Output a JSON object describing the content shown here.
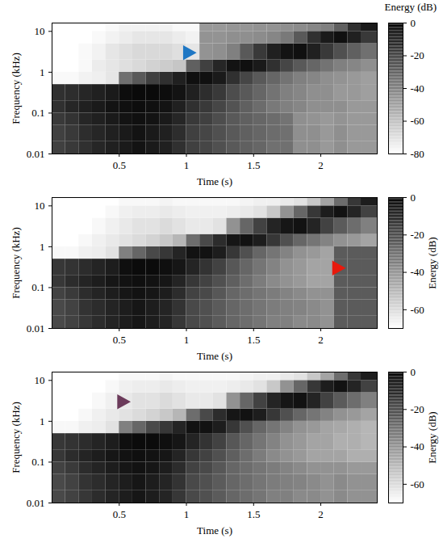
{
  "chart_data": [
    {
      "type": "heatmap",
      "x_label": "Time (s)",
      "y_label": "Frequency (kHz)",
      "log": "y",
      "xlim": [
        0,
        2.42
      ],
      "xticks": [
        0.5,
        1,
        1.5,
        2
      ],
      "ylim": [
        0.01,
        16
      ],
      "yticks": [
        0.01,
        0.1,
        1,
        10
      ],
      "x_edges": [
        0,
        0.1,
        0.2,
        0.3,
        0.4,
        0.5,
        0.6,
        0.7,
        0.8,
        0.9,
        1,
        1.1,
        1.2,
        1.3,
        1.4,
        1.5,
        1.6,
        1.7,
        1.8,
        1.9,
        2,
        2.1,
        2.2,
        2.3,
        2.42
      ],
      "y_edges": [
        0.01,
        0.02,
        0.05,
        0.1,
        0.2,
        0.5,
        1,
        2,
        5,
        10,
        16
      ],
      "cells": [
        [
          -20,
          -18,
          -15,
          -12,
          -10,
          -8,
          -6,
          -8,
          -10,
          -15,
          -20,
          -22,
          -25,
          -28,
          -30,
          -32,
          -35,
          -35,
          -45,
          -45,
          -48,
          -45,
          -48,
          -48
        ],
        [
          -20,
          -18,
          -14,
          -12,
          -10,
          -8,
          -6,
          -8,
          -10,
          -14,
          -20,
          -22,
          -25,
          -28,
          -30,
          -32,
          -34,
          -35,
          -45,
          -45,
          -48,
          -45,
          -48,
          -48
        ],
        [
          -18,
          -16,
          -12,
          -10,
          -8,
          -6,
          -5,
          -6,
          -8,
          -12,
          -18,
          -20,
          -24,
          -28,
          -30,
          -32,
          -34,
          -36,
          -45,
          -46,
          -48,
          -46,
          -48,
          -48
        ],
        [
          -15,
          -12,
          -10,
          -8,
          -6,
          -5,
          -4,
          -5,
          -6,
          -10,
          -15,
          -18,
          -22,
          -26,
          -30,
          -34,
          -38,
          -40,
          -42,
          -45,
          -45,
          -45,
          -48,
          -48
        ],
        [
          -15,
          -14,
          -12,
          -10,
          -8,
          -4,
          -3,
          -3,
          -4,
          -6,
          -10,
          -14,
          -18,
          -24,
          -28,
          -32,
          -36,
          -40,
          -42,
          -45,
          -45,
          -48,
          -48,
          -50
        ],
        [
          -78,
          -78,
          -76,
          -75,
          -72,
          -35,
          -28,
          -20,
          -15,
          -10,
          -5,
          -5,
          -8,
          -15,
          -22,
          -28,
          -32,
          -36,
          -40,
          -42,
          -45,
          -46,
          -48,
          -50
        ],
        [
          -80,
          -80,
          -78,
          -74,
          -72,
          -70,
          -68,
          -66,
          -64,
          -62,
          -30,
          -20,
          -12,
          -6,
          -5,
          -8,
          -15,
          -22,
          -28,
          -32,
          -36,
          -40,
          -42,
          -45
        ],
        [
          -80,
          -80,
          -78,
          -76,
          -72,
          -70,
          -68,
          -68,
          -68,
          -70,
          -72,
          -46,
          -45,
          -40,
          -28,
          -18,
          -10,
          -6,
          -5,
          -10,
          -18,
          -25,
          -30,
          -35
        ],
        [
          -80,
          -80,
          -80,
          -78,
          -76,
          -74,
          -72,
          -72,
          -72,
          -74,
          -76,
          -46,
          -46,
          -45,
          -45,
          -44,
          -42,
          -38,
          -28,
          -15,
          -8,
          -5,
          -10,
          -18
        ],
        [
          -80,
          -80,
          -80,
          -80,
          -78,
          -76,
          -76,
          -76,
          -76,
          -78,
          -78,
          -48,
          -48,
          -47,
          -47,
          -46,
          -46,
          -45,
          -44,
          -42,
          -40,
          -30,
          -15,
          -8
        ]
      ],
      "color_label": "Energy (dB)",
      "color_lim": [
        -80,
        0
      ],
      "color_ticks": [
        -80,
        -60,
        -40,
        -20,
        0
      ],
      "markers": [
        {
          "x": 1.02,
          "y": 3,
          "color": "#1f77c4"
        }
      ]
    },
    {
      "type": "heatmap",
      "x_label": "Time (s)",
      "y_label": "Frequency (kHz)",
      "log": "y",
      "xlim": [
        0,
        2.42
      ],
      "xticks": [
        0.5,
        1,
        1.5,
        2
      ],
      "ylim": [
        0.01,
        16
      ],
      "yticks": [
        0.01,
        0.1,
        1,
        10
      ],
      "x_edges": [
        0,
        0.1,
        0.2,
        0.3,
        0.4,
        0.5,
        0.6,
        0.7,
        0.8,
        0.9,
        1,
        1.1,
        1.2,
        1.3,
        1.4,
        1.5,
        1.6,
        1.7,
        1.8,
        1.9,
        2,
        2.1,
        2.2,
        2.3,
        2.42
      ],
      "y_edges": [
        0.01,
        0.02,
        0.05,
        0.1,
        0.2,
        0.5,
        1,
        2,
        5,
        10,
        16
      ],
      "cells": [
        [
          -20,
          -18,
          -15,
          -12,
          -10,
          -8,
          -6,
          -8,
          -10,
          -15,
          -20,
          -22,
          -25,
          -28,
          -30,
          -32,
          -35,
          -35,
          -38,
          -38,
          -40,
          -25,
          -25,
          -25
        ],
        [
          -20,
          -18,
          -14,
          -12,
          -10,
          -8,
          -6,
          -8,
          -10,
          -14,
          -20,
          -22,
          -25,
          -28,
          -30,
          -32,
          -34,
          -35,
          -36,
          -38,
          -40,
          -25,
          -25,
          -25
        ],
        [
          -18,
          -16,
          -12,
          -10,
          -8,
          -6,
          -5,
          -6,
          -8,
          -12,
          -18,
          -20,
          -24,
          -28,
          -30,
          -32,
          -34,
          -36,
          -38,
          -40,
          -40,
          -25,
          -25,
          -25
        ],
        [
          -15,
          -12,
          -10,
          -8,
          -6,
          -5,
          -4,
          -5,
          -6,
          -10,
          -15,
          -18,
          -22,
          -26,
          -30,
          -34,
          -38,
          -40,
          -42,
          -45,
          -45,
          -25,
          -25,
          -25
        ],
        [
          -15,
          -14,
          -12,
          -10,
          -8,
          -4,
          -3,
          -3,
          -4,
          -6,
          -10,
          -14,
          -18,
          -24,
          -28,
          -32,
          -36,
          -40,
          -42,
          -45,
          -45,
          -25,
          -25,
          -25
        ],
        [
          -68,
          -68,
          -66,
          -65,
          -62,
          -35,
          -28,
          -20,
          -15,
          -10,
          -5,
          -5,
          -8,
          -15,
          -22,
          -28,
          -32,
          -36,
          -40,
          -42,
          -45,
          -25,
          -25,
          -25
        ],
        [
          -70,
          -70,
          -68,
          -66,
          -64,
          -62,
          -60,
          -58,
          -55,
          -50,
          -30,
          -20,
          -12,
          -6,
          -5,
          -8,
          -15,
          -22,
          -28,
          -32,
          -36,
          -40,
          -42,
          -45
        ],
        [
          -70,
          -70,
          -70,
          -68,
          -66,
          -64,
          -62,
          -62,
          -60,
          -62,
          -64,
          -64,
          -62,
          -40,
          -28,
          -18,
          -10,
          -6,
          -5,
          -10,
          -18,
          -25,
          -30,
          -35
        ],
        [
          -70,
          -70,
          -70,
          -70,
          -68,
          -66,
          -65,
          -65,
          -64,
          -65,
          -66,
          -66,
          -66,
          -65,
          -64,
          -62,
          -55,
          -40,
          -28,
          -15,
          -8,
          -5,
          -10,
          -18
        ],
        [
          -70,
          -70,
          -70,
          -70,
          -70,
          -68,
          -68,
          -68,
          -67,
          -68,
          -68,
          -68,
          -68,
          -68,
          -67,
          -66,
          -66,
          -64,
          -62,
          -55,
          -45,
          -30,
          -15,
          -8
        ]
      ],
      "color_label": "Energy (dB)",
      "color_lim": [
        -70,
        0
      ],
      "color_ticks": [
        -60,
        -40,
        -20,
        0
      ],
      "markers": [
        {
          "x": 2.13,
          "y": 0.3,
          "color": "#e8190c"
        }
      ]
    },
    {
      "type": "heatmap",
      "x_label": "Time (s)",
      "y_label": "Frequency (kHz)",
      "log": "y",
      "xlim": [
        0,
        2.42
      ],
      "xticks": [
        0.5,
        1,
        1.5,
        2
      ],
      "ylim": [
        0.01,
        16
      ],
      "yticks": [
        0.01,
        0.1,
        1,
        10
      ],
      "x_edges": [
        0,
        0.1,
        0.2,
        0.3,
        0.4,
        0.5,
        0.6,
        0.7,
        0.8,
        0.9,
        1,
        1.1,
        1.2,
        1.3,
        1.4,
        1.5,
        1.6,
        1.7,
        1.8,
        1.9,
        2,
        2.1,
        2.2,
        2.3,
        2.42
      ],
      "y_edges": [
        0.01,
        0.02,
        0.05,
        0.1,
        0.2,
        0.5,
        1,
        2,
        5,
        10,
        16
      ],
      "cells": [
        [
          -20,
          -18,
          -15,
          -12,
          -10,
          -8,
          -6,
          -8,
          -10,
          -15,
          -20,
          -22,
          -25,
          -28,
          -30,
          -32,
          -35,
          -35,
          -38,
          -38,
          -40,
          -38,
          -40,
          -40
        ],
        [
          -20,
          -18,
          -14,
          -12,
          -10,
          -8,
          -6,
          -8,
          -10,
          -14,
          -20,
          -22,
          -25,
          -28,
          -30,
          -32,
          -34,
          -35,
          -36,
          -38,
          -40,
          -38,
          -40,
          -40
        ],
        [
          -18,
          -16,
          -12,
          -10,
          -8,
          -6,
          -5,
          -6,
          -8,
          -12,
          -18,
          -20,
          -24,
          -28,
          -30,
          -32,
          -34,
          -36,
          -38,
          -40,
          -40,
          -40,
          -42,
          -42
        ],
        [
          -15,
          -12,
          -10,
          -8,
          -6,
          -5,
          -4,
          -5,
          -6,
          -10,
          -15,
          -18,
          -22,
          -26,
          -30,
          -34,
          -38,
          -40,
          -42,
          -45,
          -45,
          -45,
          -48,
          -48
        ],
        [
          -15,
          -14,
          -12,
          -10,
          -8,
          -4,
          -3,
          -3,
          -4,
          -6,
          -10,
          -14,
          -18,
          -24,
          -28,
          -32,
          -36,
          -40,
          -42,
          -45,
          -45,
          -48,
          -48,
          -50
        ],
        [
          -68,
          -68,
          -66,
          -65,
          -62,
          -35,
          -28,
          -20,
          -15,
          -10,
          -5,
          -5,
          -8,
          -15,
          -22,
          -28,
          -32,
          -36,
          -40,
          -42,
          -45,
          -46,
          -48,
          -50
        ],
        [
          -70,
          -70,
          -68,
          -66,
          -64,
          -62,
          -60,
          -58,
          -55,
          -50,
          -30,
          -20,
          -12,
          -6,
          -5,
          -8,
          -15,
          -22,
          -28,
          -32,
          -36,
          -40,
          -42,
          -45
        ],
        [
          -70,
          -70,
          -70,
          -68,
          -66,
          -64,
          -62,
          -62,
          -60,
          -62,
          -64,
          -64,
          -62,
          -40,
          -28,
          -18,
          -10,
          -6,
          -5,
          -10,
          -18,
          -25,
          -30,
          -35
        ],
        [
          -70,
          -70,
          -70,
          -70,
          -68,
          -66,
          -65,
          -65,
          -64,
          -65,
          -66,
          -66,
          -66,
          -65,
          -64,
          -62,
          -55,
          -40,
          -28,
          -15,
          -8,
          -5,
          -10,
          -18
        ],
        [
          -70,
          -70,
          -70,
          -70,
          -70,
          -68,
          -68,
          -68,
          -67,
          -68,
          -68,
          -68,
          -68,
          -68,
          -67,
          -66,
          -66,
          -64,
          -62,
          -55,
          -45,
          -30,
          -15,
          -8
        ]
      ],
      "color_label": "Energy (dB)",
      "color_lim": [
        -70,
        0
      ],
      "color_ticks": [
        -60,
        -40,
        -20,
        0
      ],
      "markers": [
        {
          "x": 0.53,
          "y": 3,
          "color": "#6b3a5a"
        }
      ]
    }
  ]
}
